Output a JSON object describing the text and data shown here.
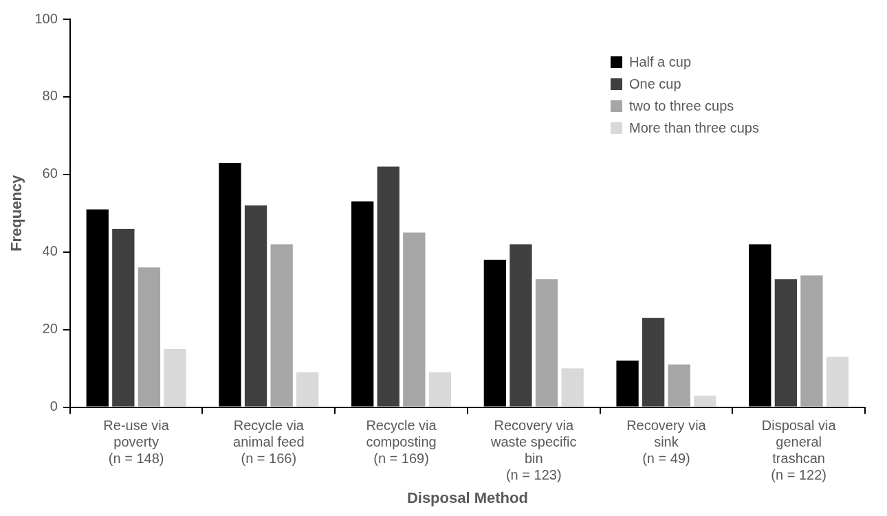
{
  "chart_data": {
    "type": "bar",
    "xlabel": "Disposal Method",
    "ylabel": "Frequency",
    "categories": [
      "Re-use via\npoverty\n(n = 148)",
      "Recycle via\nanimal feed\n(n = 166)",
      "Recycle via\ncomposting\n(n = 169)",
      "Recovery via\nwaste specific\nbin\n(n = 123)",
      "Recovery via\nsink\n(n = 49)",
      "Disposal via\ngeneral\ntrashcan\n(n = 122)"
    ],
    "series": [
      {
        "name": "Half a cup",
        "color": "#000000",
        "values": [
          51,
          63,
          53,
          38,
          12,
          42
        ]
      },
      {
        "name": "One cup",
        "color": "#404040",
        "values": [
          46,
          52,
          62,
          42,
          23,
          33
        ]
      },
      {
        "name": "two to three cups",
        "color": "#a6a6a6",
        "values": [
          36,
          42,
          45,
          33,
          11,
          34
        ]
      },
      {
        "name": "More than three cups",
        "color": "#d9d9d9",
        "values": [
          15,
          9,
          9,
          10,
          3,
          13
        ]
      }
    ],
    "ylim": [
      0,
      100
    ],
    "yticks": [
      0,
      20,
      40,
      60,
      80,
      100
    ],
    "grid": false,
    "legend": "top right"
  }
}
